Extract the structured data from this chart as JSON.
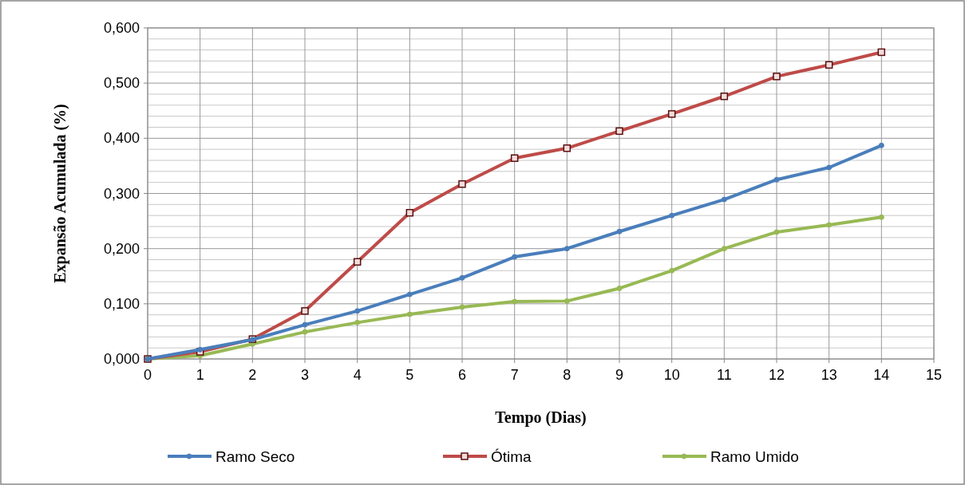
{
  "chart_data": {
    "type": "line",
    "xlabel": "Tempo (Dias)",
    "ylabel": "Expansão Acumulada (%)",
    "x": [
      0,
      1,
      2,
      3,
      4,
      5,
      6,
      7,
      8,
      9,
      10,
      11,
      12,
      13,
      14
    ],
    "series": [
      {
        "name": "Ramo Seco",
        "color": "#4a7ebb",
        "marker": "circle",
        "values": [
          0,
          0.017,
          0.035,
          0.062,
          0.087,
          0.117,
          0.147,
          0.185,
          0.2,
          0.231,
          0.26,
          0.289,
          0.325,
          0.347,
          0.387
        ]
      },
      {
        "name": "Ótima",
        "color": "#be4b48",
        "marker": "square",
        "values": [
          0,
          0.013,
          0.036,
          0.087,
          0.176,
          0.265,
          0.317,
          0.364,
          0.382,
          0.413,
          0.444,
          0.476,
          0.512,
          0.533,
          0.556
        ]
      },
      {
        "name": "Ramo Umido",
        "color": "#98b954",
        "marker": "circle",
        "values": [
          0,
          0.006,
          0.027,
          0.049,
          0.066,
          0.081,
          0.094,
          0.104,
          0.105,
          0.128,
          0.16,
          0.2,
          0.23,
          0.243,
          0.257
        ]
      }
    ],
    "xlim": [
      0,
      15
    ],
    "xticks": [
      0,
      1,
      2,
      3,
      4,
      5,
      6,
      7,
      8,
      9,
      10,
      11,
      12,
      13,
      14,
      15
    ],
    "ylim": [
      0,
      0.6
    ],
    "yticks": [
      {
        "value": 0,
        "label": "0,000"
      },
      {
        "value": 0.1,
        "label": "0,100"
      },
      {
        "value": 0.2,
        "label": "0,200"
      },
      {
        "value": 0.3,
        "label": "0,300"
      },
      {
        "value": 0.4,
        "label": "0,400"
      },
      {
        "value": 0.5,
        "label": "0,500"
      },
      {
        "value": 0.6,
        "label": "0,600"
      }
    ],
    "grid": true,
    "legend": "bottom",
    "line_style": "solid"
  }
}
